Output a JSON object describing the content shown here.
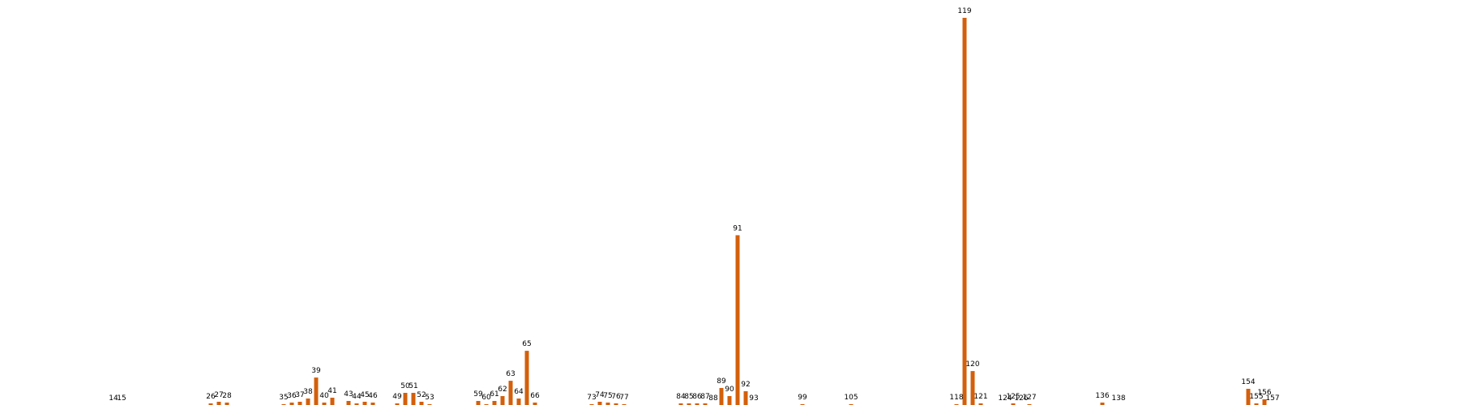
{
  "chart_data": {
    "type": "bar",
    "title": "",
    "xlabel": "",
    "ylabel": "",
    "grid": false,
    "bar_color": "#d45f0b",
    "label_color": "#000000",
    "x_domain": [
      0,
      180
    ],
    "ylim": [
      0,
      480
    ],
    "categories": [
      "14",
      "15",
      "26",
      "27",
      "28",
      "35",
      "36",
      "37",
      "38",
      "39",
      "40",
      "41",
      "43",
      "44",
      "45",
      "46",
      "49",
      "50",
      "51",
      "52",
      "53",
      "59",
      "60",
      "61",
      "62",
      "63",
      "64",
      "65",
      "66",
      "73",
      "74",
      "75",
      "76",
      "77",
      "84",
      "85",
      "86",
      "87",
      "88",
      "89",
      "90",
      "91",
      "92",
      "93",
      "99",
      "105",
      "118",
      "119",
      "120",
      "121",
      "124",
      "125",
      "126",
      "127",
      "136",
      "138",
      "154",
      "155",
      "156",
      "157"
    ],
    "values": [
      0,
      0,
      2,
      4,
      3,
      1,
      3,
      4,
      8,
      34,
      3,
      9,
      5,
      2,
      4,
      3,
      2,
      15,
      15,
      4,
      1,
      5,
      1,
      5,
      11,
      30,
      8,
      67,
      3,
      1,
      4,
      3,
      2,
      1,
      2,
      2,
      2,
      2,
      0,
      21,
      11,
      210,
      17,
      0,
      1,
      1,
      1,
      479,
      42,
      2,
      0,
      2,
      0,
      1,
      3,
      0,
      20,
      2,
      7,
      0
    ]
  }
}
